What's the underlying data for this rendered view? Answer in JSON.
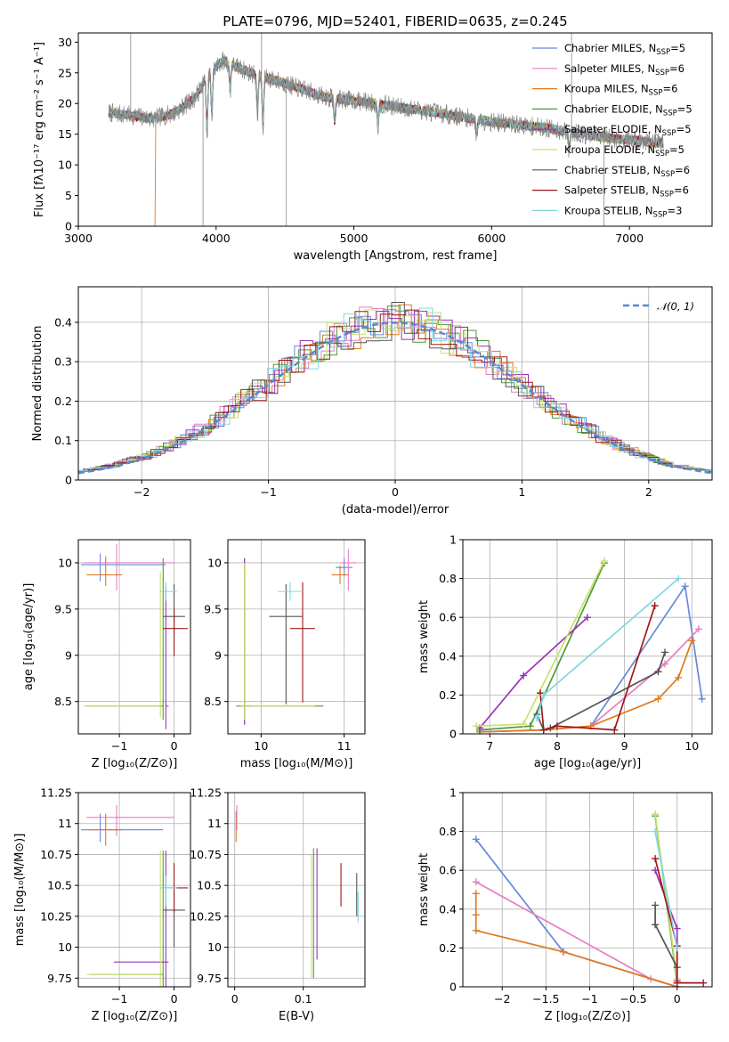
{
  "title": "PLATE=0796, MJD=52401, FIBERID=0635, z=0.245",
  "colors": {
    "Chabrier MILES": "#6688dd",
    "Salpeter MILES": "#e57fc0",
    "Kroupa MILES": "#e07a1f",
    "Chabrier ELODIE": "#4f9a3a",
    "Salpeter ELODIE": "#9a32b8",
    "Kroupa ELODIE": "#c9e06a",
    "Chabrier STELIB": "#555555",
    "Salpeter STELIB": "#a01818",
    "Kroupa STELIB": "#7fd8e0",
    "data": "#888888"
  },
  "legend_top": [
    {
      "key": "Chabrier MILES",
      "base": "Chabrier MILES, N",
      "sub": "SSP",
      "val": "=5"
    },
    {
      "key": "Salpeter MILES",
      "base": "Salpeter MILES, N",
      "sub": "SSP",
      "val": "=6"
    },
    {
      "key": "Kroupa MILES",
      "base": "Kroupa MILES, N",
      "sub": "SSP",
      "val": "=6"
    },
    {
      "key": "Chabrier ELODIE",
      "base": "Chabrier ELODIE, N",
      "sub": "SSP",
      "val": "=5"
    },
    {
      "key": "Salpeter ELODIE",
      "base": "Salpeter ELODIE, N",
      "sub": "SSP",
      "val": "=5"
    },
    {
      "key": "Kroupa ELODIE",
      "base": "Kroupa ELODIE, N",
      "sub": "SSP",
      "val": "=5"
    },
    {
      "key": "Chabrier STELIB",
      "base": "Chabrier STELIB, N",
      "sub": "SSP",
      "val": "=6"
    },
    {
      "key": "Salpeter STELIB",
      "base": "Salpeter STELIB, N",
      "sub": "SSP",
      "val": "=6"
    },
    {
      "key": "Kroupa STELIB",
      "base": "Kroupa STELIB, N",
      "sub": "SSP",
      "val": "=3"
    }
  ],
  "chart_data": [
    {
      "id": "spectrum",
      "type": "line",
      "xlabel": "wavelength [Angstrom, rest frame]",
      "ylabel": "Flux [fλ10⁻¹⁷ erg cm⁻² s⁻¹ A⁻¹]",
      "xlim": [
        3000,
        7600
      ],
      "ylim": [
        0,
        31.5
      ],
      "xticks": [
        3000,
        4000,
        5000,
        6000,
        7000
      ],
      "yticks": [
        0,
        5,
        10,
        15,
        20,
        25,
        30
      ],
      "continuum": [
        [
          3220,
          18.5
        ],
        [
          3400,
          18
        ],
        [
          3550,
          17.5
        ],
        [
          3700,
          18.5
        ],
        [
          3850,
          21
        ],
        [
          3950,
          25
        ],
        [
          4050,
          27
        ],
        [
          4150,
          26
        ],
        [
          4250,
          25
        ],
        [
          4400,
          24
        ],
        [
          4600,
          22.5
        ],
        [
          4800,
          21
        ],
        [
          5000,
          20.5
        ],
        [
          5300,
          19.5
        ],
        [
          5600,
          18.5
        ],
        [
          6000,
          17
        ],
        [
          6400,
          16
        ],
        [
          6800,
          14.5
        ],
        [
          7250,
          13.5
        ]
      ]
    },
    {
      "id": "residuals",
      "type": "step",
      "xlabel": "(data-model)/error",
      "ylabel": "Normed distribution",
      "xlim": [
        -2.5,
        2.5
      ],
      "ylim": [
        0,
        0.49
      ],
      "xticks": [
        -2,
        -1,
        0,
        1,
        2
      ],
      "yticks": [
        0,
        0.1,
        0.2,
        0.3,
        0.4
      ],
      "legend": "𝒩(0, 1)"
    },
    {
      "id": "age_vs_Z",
      "type": "errorbar",
      "xlabel": "Z [log₁₀(Z/Z⊙)]",
      "ylabel": "age  [log₁₀(age/yr)]",
      "xlim": [
        -1.75,
        0.3
      ],
      "ylim": [
        8.15,
        10.25
      ],
      "xticks": [
        -1,
        0
      ],
      "yticks": [
        8.5,
        9.0,
        9.5,
        10.0
      ]
    },
    {
      "id": "age_vs_mass",
      "type": "errorbar",
      "xlabel": "mass [log₁₀(M/M⊙)]",
      "xlim": [
        9.6,
        11.25
      ],
      "ylim": [
        8.15,
        10.25
      ],
      "xticks": [
        10,
        11
      ],
      "yticks": [
        8.5,
        9.0,
        9.5,
        10.0
      ]
    },
    {
      "id": "weight_vs_age",
      "type": "line",
      "xlabel": "age  [log₁₀(age/yr)]",
      "ylabel": "mass weight",
      "xlim": [
        6.6,
        10.3
      ],
      "ylim": [
        0,
        1
      ],
      "xticks": [
        7,
        8,
        9,
        10
      ],
      "yticks": [
        0,
        0.2,
        0.4,
        0.6,
        0.8,
        1.0
      ],
      "series": [
        {
          "name": "Chabrier MILES",
          "x": [
            6.85,
            7.8,
            8.5,
            9.9,
            10.15
          ],
          "y": [
            0.01,
            0.02,
            0.04,
            0.76,
            0.18
          ]
        },
        {
          "name": "Salpeter MILES",
          "x": [
            6.85,
            7.8,
            8.5,
            9.6,
            10.1
          ],
          "y": [
            0.01,
            0.02,
            0.04,
            0.36,
            0.54
          ]
        },
        {
          "name": "Kroupa MILES",
          "x": [
            6.85,
            7.8,
            8.5,
            9.5,
            9.8,
            10.0
          ],
          "y": [
            0.01,
            0.02,
            0.04,
            0.18,
            0.29,
            0.48
          ]
        },
        {
          "name": "Chabrier ELODIE",
          "x": [
            6.85,
            7.6,
            8.7
          ],
          "y": [
            0.02,
            0.04,
            0.88
          ]
        },
        {
          "name": "Salpeter ELODIE",
          "x": [
            6.85,
            7.5,
            8.45
          ],
          "y": [
            0.03,
            0.3,
            0.6
          ]
        },
        {
          "name": "Kroupa ELODIE",
          "x": [
            6.8,
            7.5,
            8.7
          ],
          "y": [
            0.04,
            0.05,
            0.89
          ]
        },
        {
          "name": "Chabrier STELIB",
          "x": [
            7.7,
            7.8,
            7.9,
            9.5,
            9.6
          ],
          "y": [
            0.1,
            0.02,
            0.03,
            0.32,
            0.42
          ]
        },
        {
          "name": "Salpeter STELIB",
          "x": [
            7.75,
            7.8,
            8.0,
            8.85,
            9.45
          ],
          "y": [
            0.21,
            0.02,
            0.04,
            0.02,
            0.66
          ]
        },
        {
          "name": "Kroupa STELIB",
          "x": [
            7.7,
            7.8,
            9.8
          ],
          "y": [
            0.08,
            0.2,
            0.8
          ]
        }
      ]
    },
    {
      "id": "mass_vs_Z",
      "type": "errorbar",
      "xlabel": "Z [log₁₀(Z/Z⊙)]",
      "ylabel": "mass [log₁₀(M/M⊙)]",
      "xlim": [
        -1.75,
        0.3
      ],
      "ylim": [
        9.68,
        11.25
      ],
      "xticks": [
        -1,
        0
      ],
      "yticks": [
        9.75,
        10.0,
        10.25,
        10.5,
        10.75,
        11.0,
        11.25
      ]
    },
    {
      "id": "mass_vs_EBV",
      "type": "errorbar",
      "xlabel": "E(B-V)",
      "xlim": [
        -0.01,
        0.19
      ],
      "ylim": [
        9.68,
        11.25
      ],
      "xticks": [
        0.0,
        0.1
      ],
      "yticks": [
        9.75,
        10.0,
        10.25,
        10.5,
        10.75,
        11.0,
        11.25
      ]
    },
    {
      "id": "weight_vs_Z",
      "type": "line",
      "xlabel": "Z [log₁₀(Z/Z⊙)]",
      "ylabel": "mass weight",
      "xlim": [
        -2.45,
        0.4
      ],
      "ylim": [
        0,
        1
      ],
      "xticks": [
        -2.0,
        -1.5,
        -1.0,
        -0.5,
        0.0
      ],
      "yticks": [
        0,
        0.2,
        0.4,
        0.6,
        0.8,
        1.0
      ],
      "series": [
        {
          "name": "Chabrier MILES",
          "x": [
            -2.3,
            -1.3,
            0.0
          ],
          "y": [
            0.76,
            0.18,
            0.0
          ]
        },
        {
          "name": "Salpeter MILES",
          "x": [
            -2.3,
            -0.3,
            0.0
          ],
          "y": [
            0.54,
            0.04,
            0.0
          ]
        },
        {
          "name": "Kroupa MILES",
          "x": [
            -2.3,
            -2.3,
            -2.3,
            -1.3,
            0.0
          ],
          "y": [
            0.48,
            0.37,
            0.29,
            0.18,
            0.0
          ]
        },
        {
          "name": "Chabrier ELODIE",
          "x": [
            -0.25,
            0.0
          ],
          "y": [
            0.88,
            0.02
          ]
        },
        {
          "name": "Salpeter ELODIE",
          "x": [
            -0.25,
            0.0,
            0.0
          ],
          "y": [
            0.6,
            0.3,
            0.03
          ]
        },
        {
          "name": "Kroupa ELODIE",
          "x": [
            -0.25,
            0.0
          ],
          "y": [
            0.89,
            0.04
          ]
        },
        {
          "name": "Chabrier STELIB",
          "x": [
            -0.25,
            -0.25,
            0.0,
            0.0
          ],
          "y": [
            0.42,
            0.32,
            0.1,
            0.02
          ]
        },
        {
          "name": "Salpeter STELIB",
          "x": [
            -0.25,
            0.0,
            0.0,
            0.3
          ],
          "y": [
            0.66,
            0.21,
            0.02,
            0.02
          ]
        },
        {
          "name": "Kroupa STELIB",
          "x": [
            -0.25,
            0.0
          ],
          "y": [
            0.8,
            0.2
          ]
        }
      ]
    }
  ]
}
